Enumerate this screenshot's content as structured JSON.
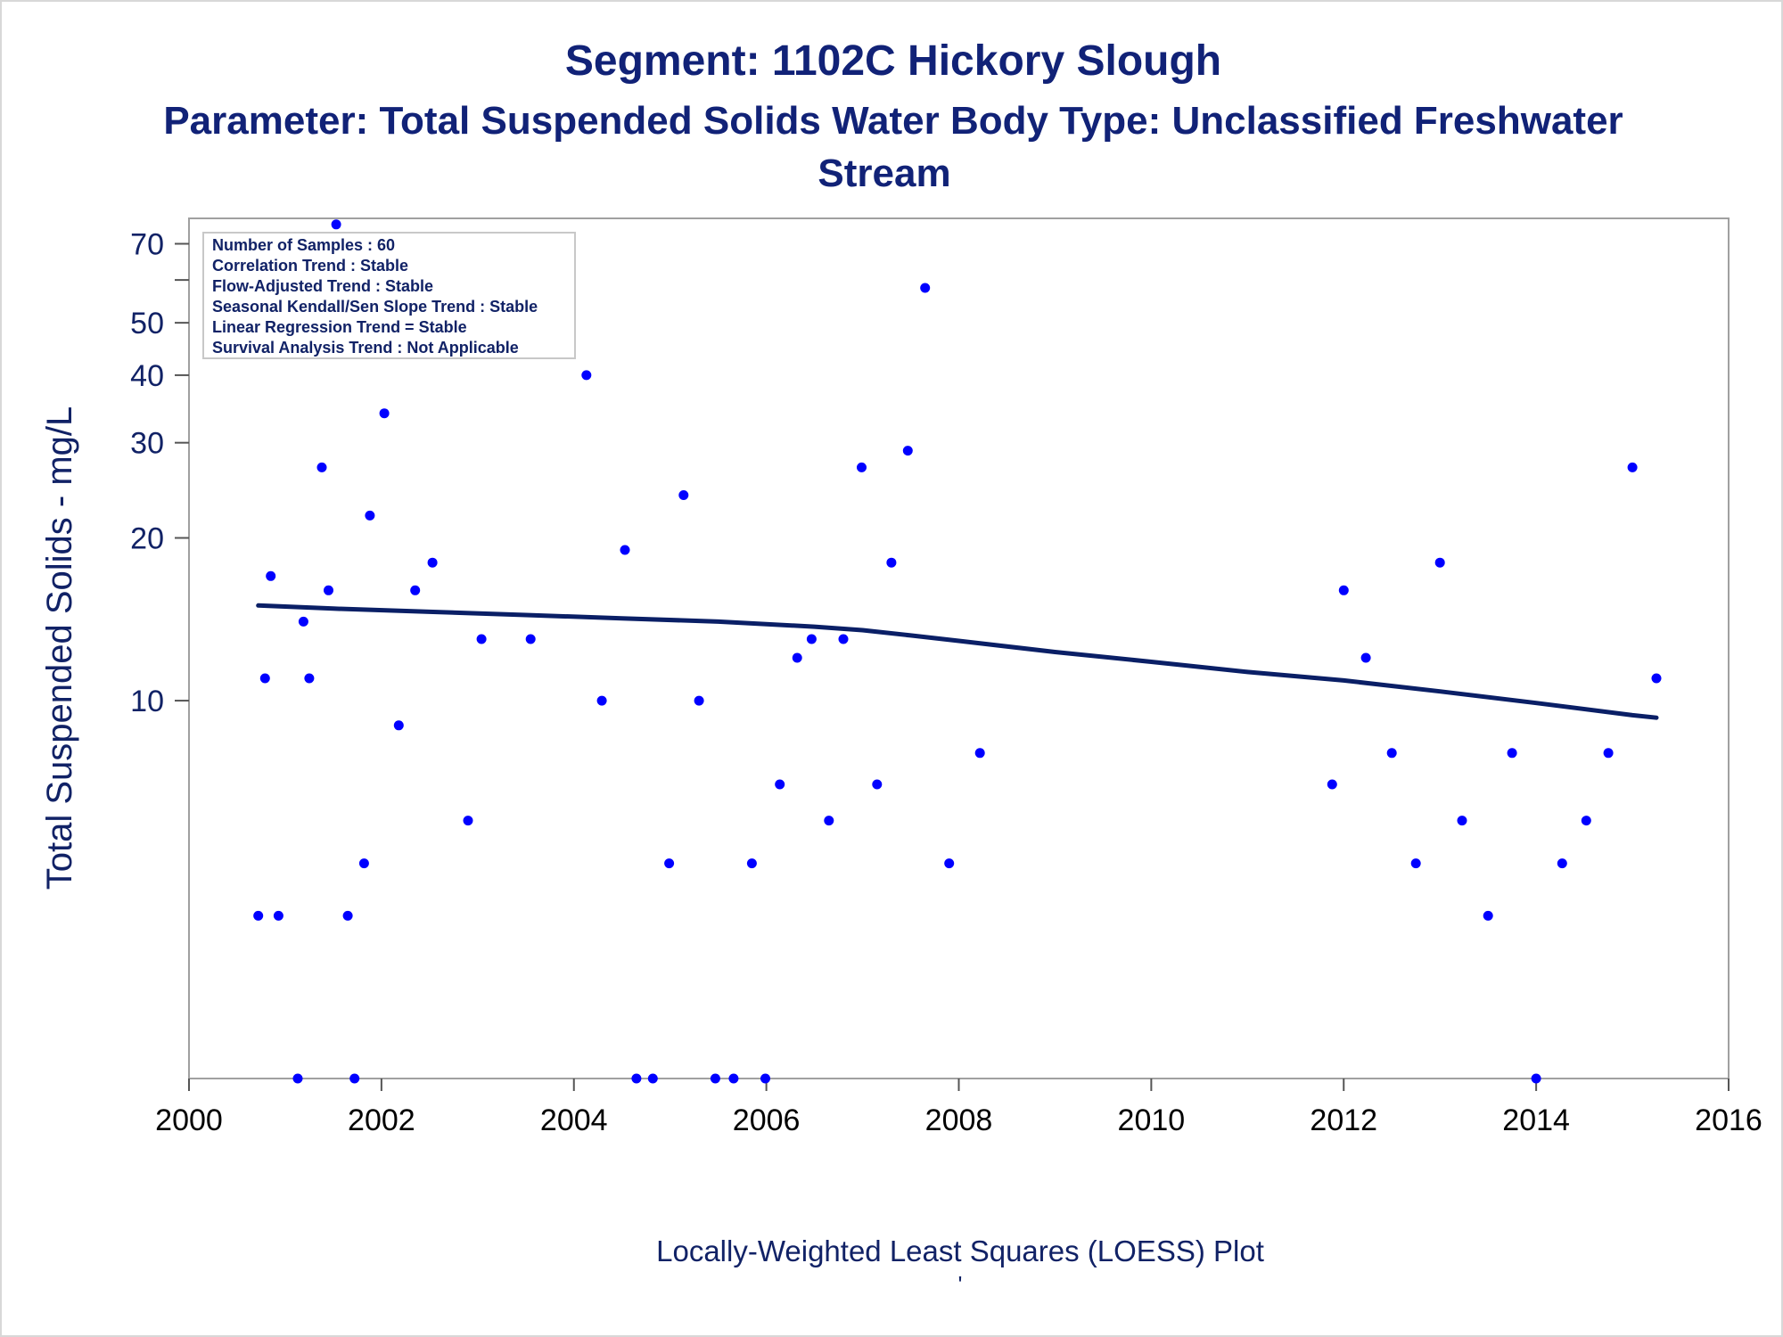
{
  "chart_data": {
    "type": "scatter",
    "title": "Segment: 1102C  Hickory Slough",
    "subtitle_lines": [
      "Parameter: Total Suspended Solids   Water Body Type: Unclassified Freshwater",
      "Stream"
    ],
    "ylabel": "Total Suspended Solids - mg/L",
    "xlabel": "Locally-Weighted Least Squares (LOESS) Plot",
    "footnote": "'",
    "y_scale": "log",
    "xlim": [
      2000,
      2016
    ],
    "ylim": [
      2.0,
      78
    ],
    "x_ticks": [
      2000,
      2002,
      2004,
      2006,
      2008,
      2010,
      2012,
      2014,
      2016
    ],
    "x_tick_labels": [
      "2000",
      "2002",
      "2004",
      "2006",
      "2008",
      "2010",
      "2012",
      "2014",
      "2016"
    ],
    "y_ticks": [
      10,
      20,
      30,
      40,
      50,
      60,
      70
    ],
    "y_tick_labels": [
      "10",
      "20",
      "30",
      "40",
      "50",
      "",
      "70"
    ],
    "grid": false,
    "stats_box": {
      "placement": "top-left",
      "lines": [
        "Number of Samples : 60",
        "Correlation Trend : Stable",
        "Flow-Adjusted Trend : Stable",
        "Seasonal Kendall/Sen Slope Trend : Stable",
        "Linear Regression Trend = Stable",
        "Survival Analysis Trend : Not Applicable"
      ]
    },
    "series": [
      {
        "kind": "points",
        "color": "#0000ff",
        "points": [
          [
            2000.72,
            4
          ],
          [
            2000.79,
            11
          ],
          [
            2000.85,
            17
          ],
          [
            2000.93,
            4
          ],
          [
            2001.13,
            2
          ],
          [
            2001.19,
            14
          ],
          [
            2001.25,
            11
          ],
          [
            2001.38,
            27
          ],
          [
            2001.45,
            16
          ],
          [
            2001.53,
            76
          ],
          [
            2001.65,
            4
          ],
          [
            2001.72,
            2
          ],
          [
            2001.82,
            5
          ],
          [
            2001.88,
            22
          ],
          [
            2002.03,
            34
          ],
          [
            2002.18,
            9
          ],
          [
            2002.35,
            16
          ],
          [
            2002.53,
            18
          ],
          [
            2002.9,
            6
          ],
          [
            2003.04,
            13
          ],
          [
            2003.55,
            13
          ],
          [
            2004.13,
            40
          ],
          [
            2004.29,
            10
          ],
          [
            2004.53,
            19
          ],
          [
            2004.65,
            2
          ],
          [
            2004.82,
            2
          ],
          [
            2004.99,
            5
          ],
          [
            2005.14,
            24
          ],
          [
            2005.3,
            10
          ],
          [
            2005.47,
            2
          ],
          [
            2005.66,
            2
          ],
          [
            2005.85,
            5
          ],
          [
            2005.99,
            2
          ],
          [
            2006.14,
            7
          ],
          [
            2006.32,
            12
          ],
          [
            2006.47,
            13
          ],
          [
            2006.65,
            6
          ],
          [
            2006.8,
            13
          ],
          [
            2006.99,
            27
          ],
          [
            2007.15,
            7
          ],
          [
            2007.3,
            18
          ],
          [
            2007.47,
            29
          ],
          [
            2007.65,
            58
          ],
          [
            2007.9,
            5
          ],
          [
            2008.22,
            8
          ],
          [
            2011.88,
            7
          ],
          [
            2012.0,
            16
          ],
          [
            2012.23,
            12
          ],
          [
            2012.5,
            8
          ],
          [
            2012.75,
            5
          ],
          [
            2013.0,
            18
          ],
          [
            2013.23,
            6
          ],
          [
            2013.5,
            4
          ],
          [
            2013.75,
            8
          ],
          [
            2014.0,
            2
          ],
          [
            2014.27,
            5
          ],
          [
            2014.52,
            6
          ],
          [
            2014.75,
            8
          ],
          [
            2015.0,
            27
          ],
          [
            2015.25,
            11
          ]
        ]
      },
      {
        "kind": "loess-line",
        "color": "#0a1f66",
        "points": [
          [
            2000.72,
            15.0
          ],
          [
            2001.5,
            14.8
          ],
          [
            2002.5,
            14.6
          ],
          [
            2003.5,
            14.4
          ],
          [
            2004.5,
            14.2
          ],
          [
            2005.5,
            14.0
          ],
          [
            2006.5,
            13.7
          ],
          [
            2007.0,
            13.5
          ],
          [
            2007.5,
            13.2
          ],
          [
            2008.0,
            12.9
          ],
          [
            2009.0,
            12.3
          ],
          [
            2010.0,
            11.8
          ],
          [
            2011.0,
            11.3
          ],
          [
            2012.0,
            10.9
          ],
          [
            2013.0,
            10.4
          ],
          [
            2014.0,
            9.9
          ],
          [
            2015.0,
            9.4
          ],
          [
            2015.25,
            9.3
          ]
        ]
      }
    ],
    "colors": {
      "title": "#112277",
      "axis_text": "#112266",
      "tick_text": "#000000",
      "frame": "#a0a0a0",
      "points": "#0000ff",
      "loess": "#0a1f66"
    }
  }
}
